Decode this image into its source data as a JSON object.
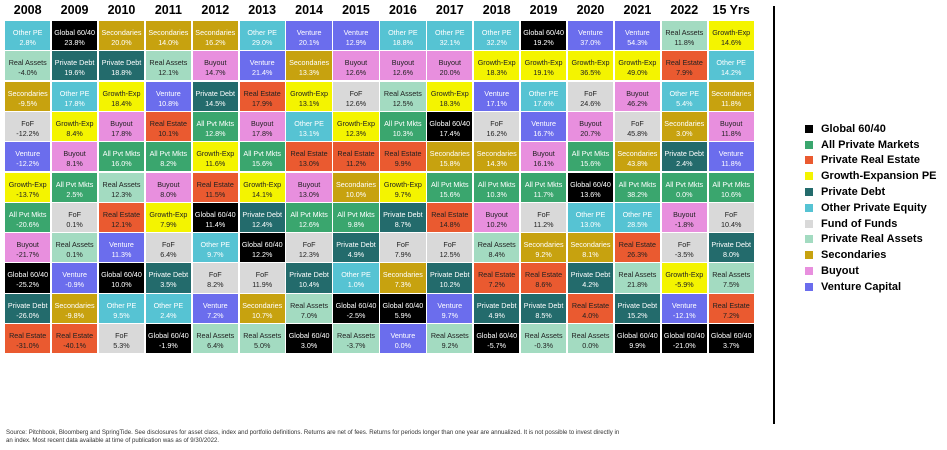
{
  "chart_data": {
    "type": "table",
    "years": [
      "2008",
      "2009",
      "2010",
      "2011",
      "2012",
      "2013",
      "2014",
      "2015",
      "2016",
      "2017",
      "2018",
      "2019",
      "2020",
      "2021",
      "2022",
      "15 Yrs"
    ],
    "columns": [
      [
        [
          "OPE",
          "2.8%"
        ],
        [
          "RA",
          "-4.0%"
        ],
        [
          "SEC",
          "-9.5%"
        ],
        [
          "FOF",
          "-12.2%"
        ],
        [
          "VC",
          "-12.2%"
        ],
        [
          "GE",
          "-13.7%"
        ],
        [
          "APM",
          "-20.6%"
        ],
        [
          "BO",
          "-21.7%"
        ],
        [
          "G",
          "-25.2%"
        ],
        [
          "PD",
          "-26.0%"
        ],
        [
          "RE",
          "-31.0%"
        ]
      ],
      [
        [
          "G",
          "23.8%"
        ],
        [
          "PD",
          "19.6%"
        ],
        [
          "OPE",
          "17.8%"
        ],
        [
          "GE",
          "8.4%"
        ],
        [
          "BO",
          "8.1%"
        ],
        [
          "APM",
          "2.5%"
        ],
        [
          "FOF",
          "0.1%"
        ],
        [
          "RA",
          "0.1%"
        ],
        [
          "VC",
          "-0.9%"
        ],
        [
          "SEC",
          "-9.8%"
        ],
        [
          "RE",
          "-40.1%"
        ]
      ],
      [
        [
          "SEC",
          "20.0%"
        ],
        [
          "PD",
          "18.8%"
        ],
        [
          "GE",
          "18.4%"
        ],
        [
          "BO",
          "17.8%"
        ],
        [
          "APM",
          "16.0%"
        ],
        [
          "RA",
          "12.3%"
        ],
        [
          "RE",
          "12.1%"
        ],
        [
          "VC",
          "11.3%"
        ],
        [
          "G",
          "10.0%"
        ],
        [
          "OPE",
          "9.5%"
        ],
        [
          "FOF",
          "5.3%"
        ]
      ],
      [
        [
          "SEC",
          "14.0%"
        ],
        [
          "RA",
          "12.1%"
        ],
        [
          "VC",
          "10.8%"
        ],
        [
          "RE",
          "10.1%"
        ],
        [
          "APM",
          "8.2%"
        ],
        [
          "BO",
          "8.0%"
        ],
        [
          "GE",
          "7.9%"
        ],
        [
          "FOF",
          "6.4%"
        ],
        [
          "PD",
          "3.5%"
        ],
        [
          "OPE",
          "2.4%"
        ],
        [
          "G",
          "-1.9%"
        ]
      ],
      [
        [
          "SEC",
          "16.2%"
        ],
        [
          "BO",
          "14.7%"
        ],
        [
          "PD",
          "14.5%"
        ],
        [
          "APM",
          "12.8%"
        ],
        [
          "GE",
          "11.6%"
        ],
        [
          "RE",
          "11.5%"
        ],
        [
          "G",
          "11.4%"
        ],
        [
          "OPE",
          "9.7%"
        ],
        [
          "FOF",
          "8.2%"
        ],
        [
          "VC",
          "7.2%"
        ],
        [
          "RA",
          "6.4%"
        ]
      ],
      [
        [
          "OPE",
          "29.0%"
        ],
        [
          "VC",
          "21.4%"
        ],
        [
          "RE",
          "17.9%"
        ],
        [
          "BO",
          "17.8%"
        ],
        [
          "APM",
          "15.6%"
        ],
        [
          "GE",
          "14.1%"
        ],
        [
          "PD",
          "12.4%"
        ],
        [
          "G",
          "12.2%"
        ],
        [
          "FOF",
          "11.9%"
        ],
        [
          "SEC",
          "10.7%"
        ],
        [
          "RA",
          "5.0%"
        ]
      ],
      [
        [
          "VC",
          "20.1%"
        ],
        [
          "SEC",
          "13.3%"
        ],
        [
          "GE",
          "13.1%"
        ],
        [
          "OPE",
          "13.1%"
        ],
        [
          "RE",
          "13.0%"
        ],
        [
          "BO",
          "13.0%"
        ],
        [
          "APM",
          "12.6%"
        ],
        [
          "FOF",
          "12.3%"
        ],
        [
          "PD",
          "10.4%"
        ],
        [
          "RA",
          "7.0%"
        ],
        [
          "G",
          "3.0%"
        ]
      ],
      [
        [
          "VC",
          "12.9%"
        ],
        [
          "BO",
          "12.6%"
        ],
        [
          "FOF",
          "12.6%"
        ],
        [
          "GE",
          "12.3%"
        ],
        [
          "RE",
          "11.2%"
        ],
        [
          "SEC",
          "10.0%"
        ],
        [
          "APM",
          "9.8%"
        ],
        [
          "PD",
          "4.9%"
        ],
        [
          "OPE",
          "1.0%"
        ],
        [
          "G",
          "-2.5%"
        ],
        [
          "RA",
          "-3.7%"
        ]
      ],
      [
        [
          "OPE",
          "18.8%"
        ],
        [
          "BO",
          "12.6%"
        ],
        [
          "RA",
          "12.5%"
        ],
        [
          "APM",
          "10.3%"
        ],
        [
          "RE",
          "9.9%"
        ],
        [
          "GE",
          "9.7%"
        ],
        [
          "PD",
          "8.7%"
        ],
        [
          "FOF",
          "7.9%"
        ],
        [
          "SEC",
          "7.3%"
        ],
        [
          "G",
          "5.9%"
        ],
        [
          "VC",
          "0.0%"
        ]
      ],
      [
        [
          "OPE",
          "32.1%"
        ],
        [
          "BO",
          "20.0%"
        ],
        [
          "GE",
          "18.3%"
        ],
        [
          "G",
          "17.4%"
        ],
        [
          "SEC",
          "15.8%"
        ],
        [
          "APM",
          "15.6%"
        ],
        [
          "RE",
          "14.8%"
        ],
        [
          "FOF",
          "12.5%"
        ],
        [
          "PD",
          "10.2%"
        ],
        [
          "VC",
          "9.7%"
        ],
        [
          "RA",
          "9.2%"
        ]
      ],
      [
        [
          "OPE",
          "32.2%"
        ],
        [
          "GE",
          "18.3%"
        ],
        [
          "VC",
          "17.1%"
        ],
        [
          "FOF",
          "16.2%"
        ],
        [
          "SEC",
          "14.3%"
        ],
        [
          "APM",
          "10.3%"
        ],
        [
          "BO",
          "10.2%"
        ],
        [
          "RA",
          "8.4%"
        ],
        [
          "RE",
          "7.2%"
        ],
        [
          "PD",
          "4.9%"
        ],
        [
          "G",
          "-5.7%"
        ]
      ],
      [
        [
          "G",
          "19.2%"
        ],
        [
          "GE",
          "19.1%"
        ],
        [
          "OPE",
          "17.6%"
        ],
        [
          "VC",
          "16.7%"
        ],
        [
          "BO",
          "16.1%"
        ],
        [
          "APM",
          "11.7%"
        ],
        [
          "FOF",
          "11.2%"
        ],
        [
          "SEC",
          "9.2%"
        ],
        [
          "RE",
          "8.6%"
        ],
        [
          "PD",
          "8.5%"
        ],
        [
          "RA",
          "-0.3%"
        ]
      ],
      [
        [
          "VC",
          "37.0%"
        ],
        [
          "GE",
          "36.5%"
        ],
        [
          "FOF",
          "24.6%"
        ],
        [
          "BO",
          "20.7%"
        ],
        [
          "APM",
          "15.6%"
        ],
        [
          "G",
          "13.6%"
        ],
        [
          "OPE",
          "13.0%"
        ],
        [
          "SEC",
          "8.1%"
        ],
        [
          "PD",
          "4.2%"
        ],
        [
          "RE",
          "4.0%"
        ],
        [
          "RA",
          "0.0%"
        ]
      ],
      [
        [
          "VC",
          "54.3%"
        ],
        [
          "GE",
          "49.0%"
        ],
        [
          "BO",
          "46.2%"
        ],
        [
          "FOF",
          "45.8%"
        ],
        [
          "SEC",
          "43.8%"
        ],
        [
          "APM",
          "38.2%"
        ],
        [
          "OPE",
          "28.5%"
        ],
        [
          "RE",
          "26.3%"
        ],
        [
          "RA",
          "21.8%"
        ],
        [
          "PD",
          "15.2%"
        ],
        [
          "G",
          "9.9%"
        ]
      ],
      [
        [
          "RA",
          "11.8%"
        ],
        [
          "RE",
          "7.9%"
        ],
        [
          "OPE",
          "5.4%"
        ],
        [
          "SEC",
          "3.0%"
        ],
        [
          "PD",
          "2.4%"
        ],
        [
          "APM",
          "0.0%"
        ],
        [
          "BO",
          "-1.8%"
        ],
        [
          "FOF",
          "-3.5%"
        ],
        [
          "GE",
          "-5.9%"
        ],
        [
          "VC",
          "-12.1%"
        ],
        [
          "G",
          "-21.0%"
        ]
      ],
      [
        [
          "GE",
          "14.6%"
        ],
        [
          "OPE",
          "14.2%"
        ],
        [
          "SEC",
          "11.8%"
        ],
        [
          "BO",
          "11.8%"
        ],
        [
          "VC",
          "11.8%"
        ],
        [
          "APM",
          "10.6%"
        ],
        [
          "FOF",
          "10.4%"
        ],
        [
          "PD",
          "8.0%"
        ],
        [
          "RA",
          "7.5%"
        ],
        [
          "RE",
          "7.2%"
        ],
        [
          "G",
          "3.7%"
        ]
      ]
    ]
  },
  "categories": {
    "G": {
      "cell_label": "Global 60/40",
      "legend": "Global 60/40",
      "bg": "#000000",
      "fg": "#ffffff"
    },
    "APM": {
      "cell_label": "All Pvt Mkts",
      "legend": "All Private Markets",
      "bg": "#3aa66e",
      "fg": "#ffffff"
    },
    "RE": {
      "cell_label": "Real Estate",
      "legend": "Private Real Estate",
      "bg": "#ea5a30",
      "fg": "#222222"
    },
    "GE": {
      "cell_label": "Growth-Exp",
      "legend": "Growth-Expansion PE",
      "bg": "#f4f400",
      "fg": "#222222"
    },
    "PD": {
      "cell_label": "Private Debt",
      "legend": "Private Debt",
      "bg": "#236b6c",
      "fg": "#ffffff"
    },
    "OPE": {
      "cell_label": "Other PE",
      "legend": "Other Private Equity",
      "bg": "#56c3d3",
      "fg": "#ffffff"
    },
    "FOF": {
      "cell_label": "FoF",
      "legend": "Fund of Funds",
      "bg": "#d9d9d9",
      "fg": "#222222"
    },
    "RA": {
      "cell_label": "Real Assets",
      "legend": "Private Real Assets",
      "bg": "#a3dbc1",
      "fg": "#222222"
    },
    "SEC": {
      "cell_label": "Secondaries",
      "legend": "Secondaries",
      "bg": "#c7a20f",
      "fg": "#ffffff"
    },
    "BO": {
      "cell_label": "Buyout",
      "legend": "Buyout",
      "bg": "#e88fde",
      "fg": "#222222"
    },
    "VC": {
      "cell_label": "Venture",
      "legend": "Venture Capital",
      "bg": "#6b6ded",
      "fg": "#ffffff"
    }
  },
  "legend_order": [
    "G",
    "APM",
    "RE",
    "GE",
    "PD",
    "OPE",
    "FOF",
    "RA",
    "SEC",
    "BO",
    "VC"
  ],
  "footnote": {
    "line1": "Source: Pitchbook, Bloomberg and SpringTide. See disclosures for asset class, index and portfolio definitions. Returns are net of fees. Returns for periods longer than one year are annualized. It is not possible to invest directly in",
    "line2": "an index. Most recent data available at time of publication was as of 9/30/2022."
  }
}
